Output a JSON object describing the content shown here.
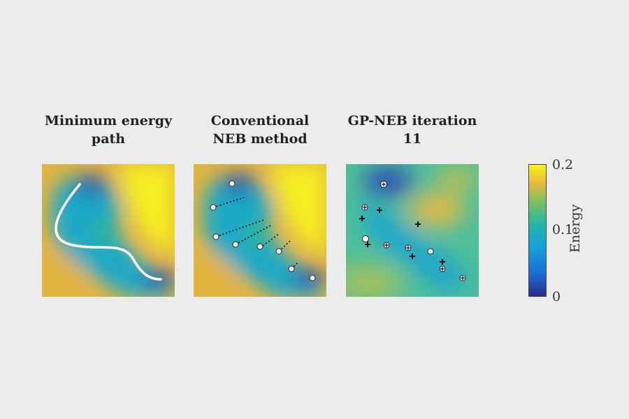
{
  "panels": [
    {
      "title": "Minimum energy\npath"
    },
    {
      "title": "Conventional\nNEB method"
    },
    {
      "title": "GP-NEB iteration\n11"
    }
  ],
  "colorbar": {
    "label": "Energy",
    "ticks": [
      "0.2",
      "0.1",
      "0"
    ],
    "colors": [
      "#2c2a8c",
      "#1b6fd6",
      "#16a3d8",
      "#24b7a7",
      "#7cc063",
      "#e8b93a",
      "#f8f41a"
    ]
  }
}
